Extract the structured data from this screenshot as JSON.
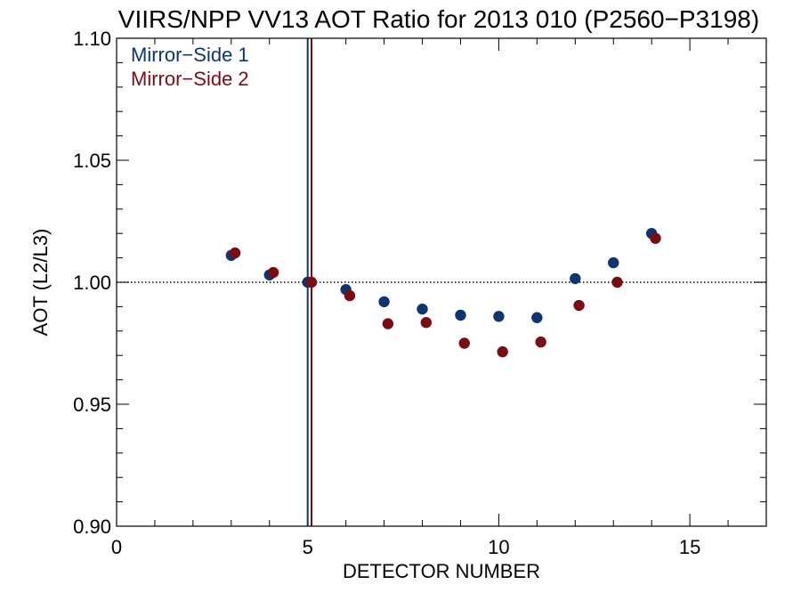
{
  "chart_data": {
    "type": "scatter",
    "title": "VIIRS/NPP VV13 AOT Ratio for 2013 010 (P2560−P3198)",
    "xlabel": "DETECTOR NUMBER",
    "ylabel": "AOT (L2/L3)",
    "xlim": [
      0,
      17
    ],
    "ylim": [
      0.9,
      1.1
    ],
    "x_tick_values": [
      0,
      5,
      10,
      15
    ],
    "x_tick_labels": [
      "0",
      "5",
      "10",
      "15"
    ],
    "y_tick_values": [
      0.9,
      0.95,
      1.0,
      1.05,
      1.1
    ],
    "y_tick_labels": [
      "0.90",
      "0.95",
      "1.00",
      "1.05",
      "1.10"
    ],
    "reference_line_y": 1.0,
    "reference_line_style": "dotted",
    "legend_position": "top-left",
    "series": [
      {
        "name": "Mirror−Side 1",
        "color": "#0f3570",
        "vline_x": 5.0,
        "x": [
          3,
          4,
          5,
          6,
          7,
          8,
          9,
          10,
          11,
          12,
          13,
          14
        ],
        "y": [
          1.011,
          1.003,
          1.0,
          0.997,
          0.992,
          0.989,
          0.9865,
          0.986,
          0.9855,
          1.0015,
          1.008,
          1.02
        ]
      },
      {
        "name": "Mirror−Side 2",
        "color": "#7a0c14",
        "vline_x": 5.1,
        "x": [
          3.1,
          4.1,
          5.1,
          6.1,
          7.1,
          8.1,
          9.1,
          10.1,
          11.1,
          12.1,
          13.1,
          14.1
        ],
        "y": [
          1.012,
          1.004,
          1.0,
          0.9945,
          0.983,
          0.9835,
          0.975,
          0.9715,
          0.9755,
          0.9905,
          1.0,
          1.018
        ]
      }
    ]
  }
}
